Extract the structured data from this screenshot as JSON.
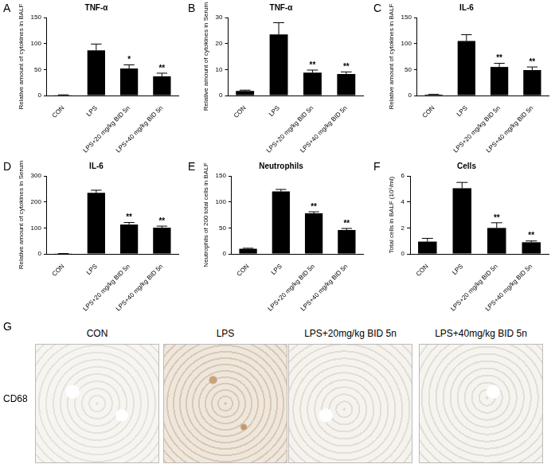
{
  "chart_data": [
    {
      "panel": "A",
      "type": "bar",
      "title": "TNF-α",
      "y_label": "Relative amount of cytokines in BALF",
      "categories": [
        "CON",
        "LPS",
        "LPS+20 mg/kg BID 5n",
        "LPS+40 mg/kg BID 5n"
      ],
      "values": [
        1,
        87,
        52,
        37
      ],
      "errors": [
        0.5,
        12,
        7,
        6
      ],
      "significance": [
        null,
        null,
        "*",
        "**"
      ],
      "color": "#000000",
      "ylim": [
        0,
        150
      ],
      "yticks": [
        0,
        50,
        100,
        150
      ]
    },
    {
      "panel": "B",
      "type": "bar",
      "title": "TNF-α",
      "y_label": "Relative amount of cytokines in Serum",
      "categories": [
        "CON",
        "LPS",
        "LPS+20 mg/kg BID 5n",
        "LPS+40 mg/kg BID 5n"
      ],
      "values": [
        1.8,
        23.5,
        8.8,
        8.3
      ],
      "errors": [
        0.3,
        4.5,
        1,
        0.8
      ],
      "significance": [
        null,
        null,
        "**",
        "**"
      ],
      "color": "#000000",
      "ylim": [
        0,
        30
      ],
      "yticks": [
        0,
        10,
        20,
        30
      ]
    },
    {
      "panel": "C",
      "type": "bar",
      "title": "IL-6",
      "y_label": "Relative amount of cytokines in BALF",
      "categories": [
        "CON",
        "LPS",
        "LPS+20 mg/kg BID 5n",
        "LPS+40 mg/kg BID 5n"
      ],
      "values": [
        2,
        105,
        55,
        49
      ],
      "errors": [
        0.5,
        12,
        7,
        6
      ],
      "significance": [
        null,
        null,
        "**",
        "**"
      ],
      "color": "#000000",
      "ylim": [
        0,
        150
      ],
      "yticks": [
        0,
        50,
        100,
        150
      ]
    },
    {
      "panel": "D",
      "type": "bar",
      "title": "IL-6",
      "y_label": "Relative amount of cytokines in Serum",
      "categories": [
        "CON",
        "LPS",
        "LPS+20 mg/kg BID 5n",
        "LPS+40 mg/kg BID 5n"
      ],
      "values": [
        1,
        235,
        113,
        101
      ],
      "errors": [
        0.5,
        10,
        8,
        6
      ],
      "significance": [
        null,
        null,
        "**",
        "**"
      ],
      "color": "#000000",
      "ylim": [
        0,
        300
      ],
      "yticks": [
        0,
        100,
        200,
        300
      ]
    },
    {
      "panel": "E",
      "type": "bar",
      "title": "Neutrophils",
      "y_label": "Neutrophils of 200 total cells in BALF",
      "categories": [
        "CON",
        "LPS",
        "LPS+20 mg/kg BID 5n",
        "LPS+40 mg/kg BID 5n"
      ],
      "values": [
        10,
        120,
        78,
        46
      ],
      "errors": [
        1,
        4,
        3,
        3
      ],
      "significance": [
        null,
        null,
        "**",
        "**"
      ],
      "color": "#000000",
      "ylim": [
        0,
        150
      ],
      "yticks": [
        0,
        50,
        100,
        150
      ]
    },
    {
      "panel": "F",
      "type": "bar",
      "title": "Cells",
      "y_label": "Total cells in BALF (10⁵/ml)",
      "categories": [
        "CON",
        "LPS",
        "LPS+20 mg/kg BID 5n",
        "LPS+40 mg/kg BID 5n"
      ],
      "values": [
        0.95,
        5.05,
        2.0,
        0.9
      ],
      "errors": [
        0.25,
        0.45,
        0.4,
        0.1
      ],
      "significance": [
        null,
        null,
        "**",
        "**"
      ],
      "color": "#000000",
      "ylim": [
        0,
        6
      ],
      "yticks": [
        0,
        2,
        4,
        6
      ]
    }
  ],
  "image_panel": {
    "panel": "G",
    "row_label": "CD68",
    "columns": [
      "CON",
      "LPS",
      "LPS+20mg/kg BID 5n",
      "LPS+40mg/kg BID 5n"
    ]
  }
}
